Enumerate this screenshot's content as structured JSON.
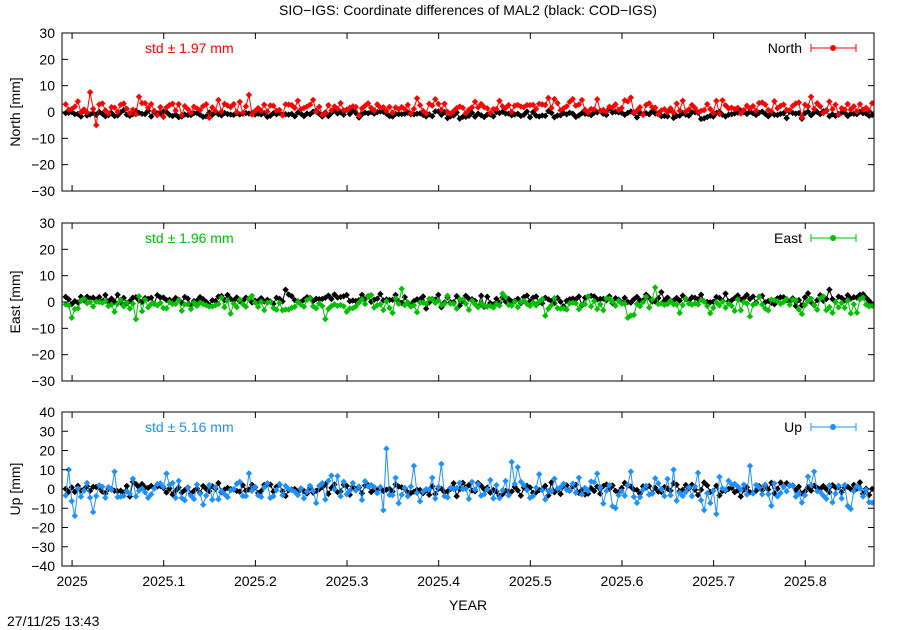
{
  "title": "SIO−IGS: Coordinate differences of MAL2 (black: COD−IGS)",
  "timestamp": "27/11/25 13:43",
  "chart_data": [
    {
      "type": "line",
      "component": "north",
      "ylabel": "North [mm]",
      "std_label": "std ± 1.97 mm",
      "legend": "North",
      "color": "#ff0000",
      "xlabel": "",
      "xlim": [
        2024.989,
        2025.875
      ],
      "ylim": [
        -30,
        30
      ],
      "yticks": [
        30,
        20,
        10,
        0,
        -10,
        -20,
        -30
      ],
      "series": [
        {
          "name": "North",
          "role": "primary",
          "color": "#ff0000",
          "mean": 1.5,
          "std": 1.97,
          "spikes": [
            [
              2025.018,
              7.5
            ],
            [
              2025.026,
              -5
            ],
            [
              2025.073,
              5.8
            ],
            [
              2025.192,
              6.5
            ],
            [
              2025.376,
              5.2
            ],
            [
              2025.805,
              5.8
            ]
          ]
        },
        {
          "name": "COD−IGS",
          "role": "reference",
          "color": "#000000",
          "mean": -0.8,
          "std": 0.8,
          "spikes": []
        }
      ]
    },
    {
      "type": "line",
      "component": "east",
      "ylabel": "East [mm]",
      "std_label": "std ± 1.96 mm",
      "legend": "East",
      "color": "#00c000",
      "xlabel": "",
      "xlim": [
        2024.989,
        2025.875
      ],
      "ylim": [
        -30,
        30
      ],
      "yticks": [
        30,
        20,
        10,
        0,
        -10,
        -20,
        -30
      ],
      "series": [
        {
          "name": "East",
          "role": "primary",
          "color": "#00c000",
          "mean": -1.2,
          "std": 1.96,
          "spikes": [
            [
              2024.999,
              -6
            ],
            [
              2025.071,
              -6.5
            ],
            [
              2025.275,
              -6.5
            ],
            [
              2025.361,
              5
            ],
            [
              2025.635,
              5.5
            ],
            [
              2025.74,
              -5.5
            ]
          ]
        },
        {
          "name": "COD−IGS",
          "role": "reference",
          "color": "#000000",
          "mean": 1.0,
          "std": 1.2,
          "spikes": [
            [
              2025.385,
              -2.5
            ]
          ]
        }
      ]
    },
    {
      "type": "line",
      "component": "up",
      "ylabel": "Up [mm]",
      "std_label": "std ± 5.16 mm",
      "legend": "Up",
      "color": "#1e90ff",
      "xlabel": "YEAR",
      "xlim": [
        2024.989,
        2025.875
      ],
      "ylim": [
        -40,
        40
      ],
      "yticks": [
        40,
        30,
        20,
        10,
        0,
        -10,
        -20,
        -30,
        -40
      ],
      "xticks": [
        2025,
        2025.1,
        2025.2,
        2025.3,
        2025.4,
        2025.5,
        2025.6,
        2025.7,
        2025.8
      ],
      "series": [
        {
          "name": "Up",
          "role": "primary",
          "color": "#1e90ff",
          "mean": -0.5,
          "std": 5.16,
          "spikes": [
            [
              2024.995,
              10
            ],
            [
              2025.022,
              -12
            ],
            [
              2025.045,
              9
            ],
            [
              2025.103,
              8
            ],
            [
              2025.282,
              7
            ],
            [
              2025.343,
              21
            ],
            [
              2025.338,
              -11
            ],
            [
              2025.372,
              12
            ],
            [
              2025.403,
              13
            ],
            [
              2025.48,
              14
            ],
            [
              2025.655,
              10
            ],
            [
              2025.69,
              -11
            ],
            [
              2025.703,
              -13
            ],
            [
              2025.74,
              12
            ],
            [
              2025.81,
              9
            ]
          ]
        },
        {
          "name": "COD−IGS",
          "role": "reference",
          "color": "#000000",
          "mean": 0.0,
          "std": 1.8,
          "spikes": []
        }
      ]
    }
  ]
}
